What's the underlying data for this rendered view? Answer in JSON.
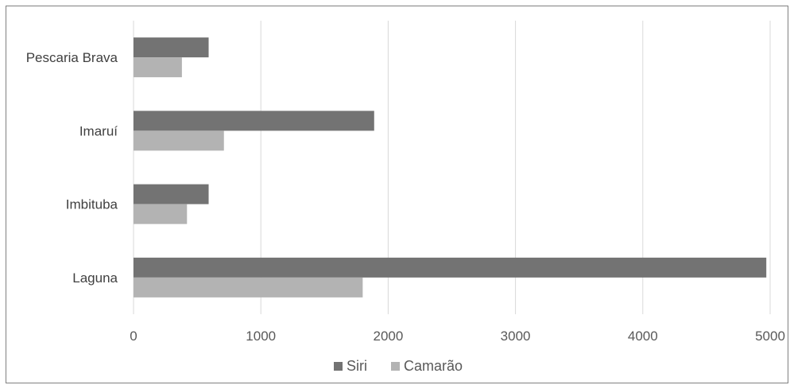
{
  "chart_data": {
    "type": "bar",
    "orientation": "horizontal",
    "categories": [
      "Pescaria Brava",
      "Imaruí",
      "Imbituba",
      "Laguna"
    ],
    "series": [
      {
        "name": "Siri",
        "values": [
          590,
          1890,
          590,
          4970
        ],
        "color": "#737373"
      },
      {
        "name": "Camarão",
        "values": [
          380,
          710,
          420,
          1800
        ],
        "color": "#b3b3b3"
      }
    ],
    "xlim": [
      0,
      5000
    ],
    "xticks": [
      0,
      1000,
      2000,
      3000,
      4000,
      5000
    ],
    "grid": true,
    "legend_position": "bottom"
  }
}
